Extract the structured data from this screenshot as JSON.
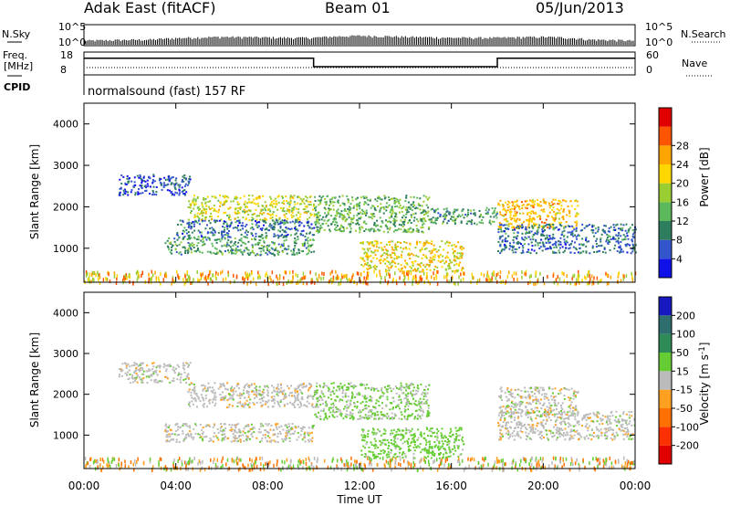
{
  "header": {
    "site": "Adak East (fitACF)",
    "beam": "Beam 01",
    "date": "05/Jun/2013"
  },
  "info_panels": {
    "nsky_label": "N.Sky",
    "nsky_ticks": [
      "10^5",
      "10^0"
    ],
    "nsearch_label": "N.Search",
    "freq_label_line1": "Freq.",
    "freq_label_line2": "[MHz]",
    "freq_ticks": [
      "18",
      "8"
    ],
    "nave_label": "Nave",
    "nave_ticks": [
      "60",
      "0"
    ],
    "cpid_label": "CPID",
    "cpid_text": "normalsound (fast) 157 RF"
  },
  "chart_data": [
    {
      "type": "line",
      "title": "N.Sky / N.Search",
      "y_scale": "log",
      "ylim": [
        1,
        100000
      ],
      "x_unit": "hour UT",
      "series": [
        {
          "name": "N.Sky",
          "x": [
            0,
            3,
            6,
            9,
            10,
            12,
            14,
            16,
            18,
            20,
            22,
            24
          ],
          "values": [
            10,
            20,
            100,
            60,
            60,
            200,
            100,
            60,
            60,
            100,
            20,
            10
          ]
        }
      ]
    },
    {
      "type": "line",
      "title": "Frequency / Nave",
      "ylim_freq": [
        8,
        18
      ],
      "ylim_nave": [
        0,
        60
      ],
      "series": [
        {
          "name": "Freq. [MHz]",
          "x": [
            0,
            10,
            10,
            18,
            18,
            24
          ],
          "values": [
            15.5,
            15.5,
            11.5,
            11.5,
            15.5,
            15.5
          ]
        },
        {
          "name": "Nave",
          "x": [
            0,
            24
          ],
          "values": [
            15,
            15
          ]
        }
      ]
    },
    {
      "type": "heatmap",
      "title": "Power",
      "xlabel": "Time UT",
      "ylabel": "Slant Range [km]",
      "xlim": [
        0,
        24
      ],
      "ylim": [
        180,
        4500
      ],
      "x_ticks": [
        "00:00",
        "04:00",
        "08:00",
        "12:00",
        "16:00",
        "20:00",
        "00:00"
      ],
      "x_tick_values": [
        0,
        4,
        8,
        12,
        16,
        20,
        24
      ],
      "y_ticks": [
        1000,
        2000,
        3000,
        4000
      ],
      "colorbar": {
        "label": "Power [dB]",
        "ticks": [
          4,
          8,
          12,
          16,
          20,
          24,
          28
        ],
        "colors": [
          "#1010e8",
          "#3355cc",
          "#2e7d5e",
          "#5cb85c",
          "#9acd32",
          "#ffd700",
          "#ffa500",
          "#ff5500",
          "#e00000"
        ]
      },
      "echo_bands": [
        {
          "range_km": [
            2300,
            2800
          ],
          "hours": [
            1.5,
            4.6
          ],
          "power_db": 4
        },
        {
          "range_km": [
            1700,
            2300
          ],
          "hours": [
            4.5,
            10.0
          ],
          "power_db": 18
        },
        {
          "range_km": [
            1300,
            1700
          ],
          "hours": [
            4.0,
            10.0
          ],
          "power_db": 6
        },
        {
          "range_km": [
            850,
            1300
          ],
          "hours": [
            3.5,
            10.0
          ],
          "power_db": 10
        },
        {
          "range_km": [
            1400,
            2300
          ],
          "hours": [
            10.0,
            15.0
          ],
          "power_db": 12
        },
        {
          "range_km": [
            450,
            1200
          ],
          "hours": [
            12.0,
            16.5
          ],
          "power_db": 20
        },
        {
          "range_km": [
            1600,
            2000
          ],
          "hours": [
            15.0,
            18.0
          ],
          "power_db": 10
        },
        {
          "range_km": [
            1500,
            2200
          ],
          "hours": [
            18.0,
            21.5
          ],
          "power_db": 22
        },
        {
          "range_km": [
            900,
            1600
          ],
          "hours": [
            18.0,
            24.0
          ],
          "power_db": 6
        }
      ]
    },
    {
      "type": "heatmap",
      "title": "Velocity",
      "xlabel": "Time UT",
      "ylabel": "Slant Range [km]",
      "xlim": [
        0,
        24
      ],
      "ylim": [
        180,
        4500
      ],
      "x_ticks": [
        "00:00",
        "04:00",
        "08:00",
        "12:00",
        "16:00",
        "20:00",
        "00:00"
      ],
      "x_tick_values": [
        0,
        4,
        8,
        12,
        16,
        20,
        24
      ],
      "y_ticks": [
        1000,
        2000,
        3000,
        4000
      ],
      "colorbar": {
        "label": "Velocity [m s-1]",
        "ticks": [
          200,
          100,
          50,
          15,
          -15,
          -50,
          -100,
          -200
        ],
        "colors": [
          "#1818c0",
          "#2e6e6e",
          "#2e8b57",
          "#66cc33",
          "#bbbbbb",
          "#ffa020",
          "#ff7000",
          "#ff3000",
          "#e00000"
        ]
      },
      "echo_bands": [
        {
          "range_km": [
            2300,
            2800
          ],
          "hours": [
            1.5,
            4.6
          ],
          "velocity": 0
        },
        {
          "range_km": [
            1700,
            2300
          ],
          "hours": [
            4.5,
            10.0
          ],
          "velocity": 0
        },
        {
          "range_km": [
            850,
            1300
          ],
          "hours": [
            3.5,
            10.0
          ],
          "velocity": 0
        },
        {
          "range_km": [
            1400,
            2300
          ],
          "hours": [
            10.0,
            15.0
          ],
          "velocity": 20
        },
        {
          "range_km": [
            450,
            1200
          ],
          "hours": [
            12.0,
            16.5
          ],
          "velocity": 30
        },
        {
          "range_km": [
            1500,
            2200
          ],
          "hours": [
            18.0,
            21.5
          ],
          "velocity": 0
        },
        {
          "range_km": [
            900,
            1600
          ],
          "hours": [
            18.0,
            24.0
          ],
          "velocity": 0
        }
      ]
    }
  ]
}
